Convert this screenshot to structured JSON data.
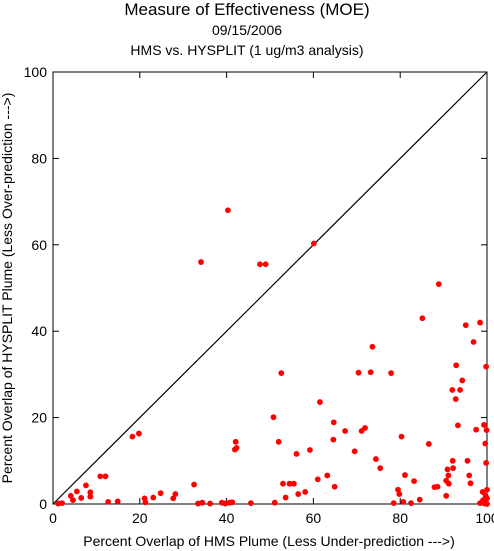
{
  "chart_data": {
    "type": "scatter",
    "title": "Measure of Effectiveness (MOE)",
    "subtitle": "09/15/2006",
    "subtitle2": "HMS vs. HYSPLIT  (1 ug/m3 analysis)",
    "xlabel": "Percent Overlap of HMS Plume (Less Under-prediction --->)",
    "ylabel": "Percent Overlap of HYSPLIT Plume (Less Over-prediction --->)",
    "xlim": [
      0,
      100
    ],
    "ylim": [
      0,
      100
    ],
    "xticks": [
      0,
      20,
      40,
      60,
      80,
      100
    ],
    "yticks": [
      0,
      20,
      40,
      60,
      80,
      100
    ],
    "grid": false,
    "reference_line": "diagonal y = x",
    "point_color": "#ff0000",
    "points": [
      [
        1.2,
        0.1
      ],
      [
        2.1,
        0.2
      ],
      [
        4.1,
        1.9
      ],
      [
        4.6,
        0.9
      ],
      [
        5.5,
        2.9
      ],
      [
        6.5,
        1.4
      ],
      [
        7.6,
        4.3
      ],
      [
        8.6,
        1.7
      ],
      [
        8.6,
        2.7
      ],
      [
        10.9,
        6.4
      ],
      [
        12.1,
        6.4
      ],
      [
        12.7,
        0.5
      ],
      [
        14.9,
        0.6
      ],
      [
        18.3,
        15.6
      ],
      [
        19.8,
        16.3
      ],
      [
        21.1,
        1.3
      ],
      [
        21.3,
        0.4
      ],
      [
        23.1,
        1.5
      ],
      [
        24.8,
        2.5
      ],
      [
        27.7,
        1.3
      ],
      [
        28.2,
        2.3
      ],
      [
        32.5,
        4.5
      ],
      [
        33.4,
        0.1
      ],
      [
        34.1,
        56.0
      ],
      [
        34.4,
        0.3
      ],
      [
        36.2,
        0.1
      ],
      [
        38.9,
        0.3
      ],
      [
        39.7,
        0.1
      ],
      [
        40.3,
        68.0
      ],
      [
        40.7,
        0.3
      ],
      [
        41.3,
        0.4
      ],
      [
        41.9,
        12.6
      ],
      [
        42.1,
        14.4
      ],
      [
        42.3,
        13.0
      ],
      [
        45.6,
        0.2
      ],
      [
        47.7,
        55.5
      ],
      [
        49.0,
        55.5
      ],
      [
        50.8,
        20.1
      ],
      [
        51.1,
        0.3
      ],
      [
        52.0,
        14.4
      ],
      [
        52.6,
        30.3
      ],
      [
        53.0,
        4.7
      ],
      [
        53.6,
        1.5
      ],
      [
        54.5,
        4.7
      ],
      [
        55.5,
        4.7
      ],
      [
        56.1,
        11.6
      ],
      [
        56.5,
        2.3
      ],
      [
        58.1,
        2.8
      ],
      [
        59.2,
        12.5
      ],
      [
        60.1,
        60.3
      ],
      [
        61.0,
        5.7
      ],
      [
        61.5,
        23.6
      ],
      [
        63.2,
        6.6
      ],
      [
        64.6,
        14.9
      ],
      [
        64.7,
        18.9
      ],
      [
        64.9,
        4.0
      ],
      [
        67.3,
        16.9
      ],
      [
        69.5,
        12.2
      ],
      [
        70.4,
        30.4
      ],
      [
        71.1,
        16.9
      ],
      [
        71.9,
        17.6
      ],
      [
        73.2,
        30.5
      ],
      [
        73.6,
        36.4
      ],
      [
        74.4,
        10.4
      ],
      [
        75.4,
        8.3
      ],
      [
        77.9,
        30.3
      ],
      [
        78.5,
        0.2
      ],
      [
        79.5,
        3.3
      ],
      [
        79.8,
        2.3
      ],
      [
        80.3,
        15.6
      ],
      [
        80.7,
        0.5
      ],
      [
        81.1,
        6.7
      ],
      [
        82.5,
        0.2
      ],
      [
        83.2,
        5.3
      ],
      [
        84.5,
        1.0
      ],
      [
        85.1,
        43.0
      ],
      [
        86.6,
        13.9
      ],
      [
        87.9,
        3.9
      ],
      [
        88.6,
        4.0
      ],
      [
        88.9,
        50.9
      ],
      [
        90.6,
        5.4
      ],
      [
        90.6,
        1.9
      ],
      [
        90.9,
        8.0
      ],
      [
        91.1,
        6.6
      ],
      [
        91.2,
        4.7
      ],
      [
        92.0,
        26.4
      ],
      [
        92.1,
        10.0
      ],
      [
        92.2,
        8.3
      ],
      [
        92.8,
        24.3
      ],
      [
        92.9,
        32.1
      ],
      [
        93.3,
        18.2
      ],
      [
        93.8,
        26.4
      ],
      [
        94.3,
        28.6
      ],
      [
        95.1,
        41.4
      ],
      [
        95.5,
        10.0
      ],
      [
        95.9,
        6.6
      ],
      [
        96.2,
        4.8
      ],
      [
        96.9,
        37.5
      ],
      [
        97.5,
        17.2
      ],
      [
        98.4,
        42.0
      ],
      [
        98.4,
        0.2
      ],
      [
        98.8,
        0.3
      ],
      [
        99.0,
        2.8
      ],
      [
        99.1,
        0.9
      ],
      [
        99.2,
        0.5
      ],
      [
        99.3,
        18.3
      ],
      [
        99.5,
        0.1
      ],
      [
        99.6,
        14.0
      ],
      [
        99.7,
        1.9
      ],
      [
        99.8,
        9.5
      ],
      [
        99.8,
        31.8
      ],
      [
        99.9,
        17.1
      ],
      [
        100.0,
        3.3
      ],
      [
        100.0,
        0.0
      ],
      [
        100.0,
        1.3
      ]
    ]
  }
}
